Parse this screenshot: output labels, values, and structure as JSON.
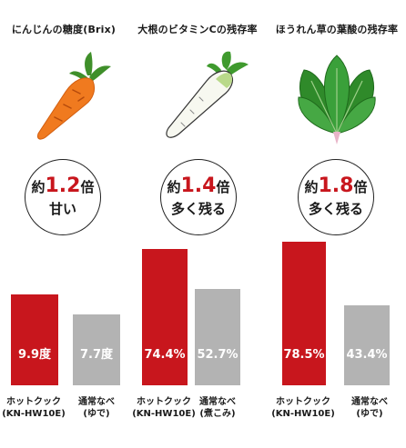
{
  "colors": {
    "hotcook": "#c8161d",
    "normal": "#b3b3b3",
    "accent_text": "#c8161d"
  },
  "chart_data": [
    {
      "type": "bar",
      "title": "にんじんの糖度(Brix)",
      "categories": [
        "ホットクック (KN-HW10E)",
        "通常なべ (ゆで)"
      ],
      "values": [
        9.9,
        7.7
      ],
      "value_labels": [
        "9.9度",
        "7.7度"
      ],
      "ratio_prefix": "約",
      "ratio_value": "1.2",
      "ratio_suffix": "倍",
      "ratio_caption": "甘い",
      "icon": "carrot-icon"
    },
    {
      "type": "bar",
      "title": "大根のビタミンCの残存率",
      "categories": [
        "ホットクック (KN-HW10E)",
        "通常なべ (煮こみ)"
      ],
      "values": [
        74.4,
        52.7
      ],
      "value_labels": [
        "74.4%",
        "52.7%"
      ],
      "ratio_prefix": "約",
      "ratio_value": "1.4",
      "ratio_suffix": "倍",
      "ratio_caption": "多く残る",
      "icon": "daikon-radish-icon"
    },
    {
      "type": "bar",
      "title": "ほうれん草の葉酸の残存率",
      "categories": [
        "ホットクック (KN-HW10E)",
        "通常なべ (ゆで)"
      ],
      "values": [
        78.5,
        43.4
      ],
      "value_labels": [
        "78.5%",
        "43.4%"
      ],
      "ratio_prefix": "約",
      "ratio_value": "1.8",
      "ratio_suffix": "倍",
      "ratio_caption": "多く残る",
      "icon": "spinach-icon"
    }
  ],
  "xlabels": [
    {
      "line1": "ホットクック",
      "line2": "(KN-HW10E)"
    },
    {
      "line1": "通常なべ",
      "line2": "(ゆで)"
    },
    {
      "line1": "ホットクック",
      "line2": "(KN-HW10E)"
    },
    {
      "line1": "通常なべ",
      "line2": "(煮こみ)"
    },
    {
      "line1": "ホットクック",
      "line2": "(KN-HW10E)"
    },
    {
      "line1": "通常なべ",
      "line2": "(ゆで)"
    }
  ]
}
